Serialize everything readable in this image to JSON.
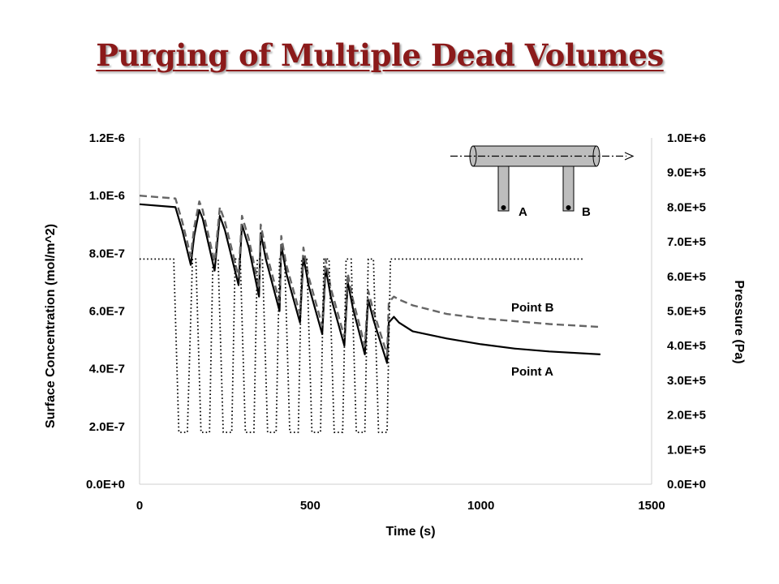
{
  "title": "Purging of Multiple Dead Volumes",
  "colors": {
    "title": "#8b1a1a",
    "solid": "#000000",
    "dashed": "#666666",
    "dotted": "#000000",
    "pipe": "#bdbdbd"
  },
  "chart_data": {
    "type": "line",
    "xlabel": "Time (s)",
    "ylabel_left": "Surface Concentration (mol/m^2)",
    "ylabel_right": "Pressure (Pa)",
    "xlim": [
      0,
      1500
    ],
    "ylim_left": [
      0,
      1.2e-06
    ],
    "ylim_right": [
      0,
      1000000.0
    ],
    "x_ticks": [
      "0",
      "500",
      "1000",
      "1500"
    ],
    "y_ticks_left": [
      "0.0E+0",
      "2.0E-7",
      "4.0E-7",
      "6.0E-7",
      "8.0E-7",
      "1.0E-6",
      "1.2E-6"
    ],
    "y_ticks_right": [
      "0.0E+0",
      "1.0E+5",
      "2.0E+5",
      "3.0E+5",
      "4.0E+5",
      "5.0E+5",
      "6.0E+5",
      "7.0E+5",
      "8.0E+5",
      "9.0E+5",
      "1.0E+6"
    ],
    "grid": false,
    "series": [
      {
        "name": "Point A",
        "axis": "left",
        "style": "solid",
        "x": [
          0,
          105,
          125,
          150,
          160,
          175,
          185,
          220,
          235,
          250,
          290,
          300,
          320,
          350,
          355,
          370,
          410,
          415,
          430,
          470,
          480,
          495,
          535,
          545,
          560,
          600,
          610,
          625,
          660,
          670,
          685,
          725,
          730,
          745,
          760,
          800,
          900,
          1000,
          1100,
          1200,
          1350
        ],
        "y": [
          9.7e-07,
          9.6e-07,
          8.8e-07,
          7.6e-07,
          8.6e-07,
          9.5e-07,
          9.2e-07,
          7.4e-07,
          9.3e-07,
          8.8e-07,
          6.9e-07,
          9e-07,
          8.2e-07,
          6.5e-07,
          8.7e-07,
          7.8e-07,
          6e-07,
          8.3e-07,
          7.3e-07,
          5.6e-07,
          7.9e-07,
          6.9e-07,
          5.2e-07,
          7.5e-07,
          6.5e-07,
          4.8e-07,
          7e-07,
          6.1e-07,
          4.5e-07,
          6.4e-07,
          5.7e-07,
          4.2e-07,
          5.6e-07,
          5.8e-07,
          5.6e-07,
          5.3e-07,
          5.05e-07,
          4.85e-07,
          4.7e-07,
          4.6e-07,
          4.5e-07
        ]
      },
      {
        "name": "Point B",
        "axis": "left",
        "style": "dashed",
        "x": [
          0,
          105,
          125,
          150,
          160,
          175,
          185,
          220,
          235,
          250,
          290,
          300,
          320,
          350,
          355,
          370,
          410,
          415,
          430,
          470,
          480,
          495,
          535,
          545,
          560,
          600,
          610,
          625,
          660,
          670,
          685,
          725,
          730,
          745,
          760,
          800,
          900,
          1000,
          1100,
          1200,
          1350
        ],
        "y": [
          1e-06,
          9.9e-07,
          9.1e-07,
          7.9e-07,
          8.9e-07,
          9.8e-07,
          9.5e-07,
          7.7e-07,
          9.6e-07,
          9.1e-07,
          7.2e-07,
          9.3e-07,
          8.5e-07,
          6.8e-07,
          9e-07,
          8.1e-07,
          6.3e-07,
          8.6e-07,
          7.6e-07,
          5.9e-07,
          8.2e-07,
          7.2e-07,
          5.5e-07,
          7.8e-07,
          6.8e-07,
          5.1e-07,
          7.3e-07,
          6.4e-07,
          4.8e-07,
          6.7e-07,
          6e-07,
          4.5e-07,
          6.3e-07,
          6.5e-07,
          6.4e-07,
          6.2e-07,
          5.9e-07,
          5.75e-07,
          5.65e-07,
          5.55e-07,
          5.45e-07
        ]
      },
      {
        "name": "",
        "axis": "right",
        "style": "dotted",
        "x": [
          0,
          100,
          115,
          140,
          155,
          165,
          180,
          205,
          215,
          230,
          245,
          270,
          280,
          295,
          310,
          335,
          345,
          360,
          375,
          400,
          410,
          425,
          440,
          465,
          475,
          490,
          505,
          530,
          540,
          555,
          570,
          595,
          605,
          620,
          635,
          660,
          670,
          685,
          700,
          725,
          735,
          1300
        ],
        "y": [
          650000.0,
          650000.0,
          150000.0,
          150000.0,
          650000.0,
          650000.0,
          150000.0,
          150000.0,
          650000.0,
          650000.0,
          150000.0,
          150000.0,
          650000.0,
          650000.0,
          150000.0,
          150000.0,
          650000.0,
          650000.0,
          150000.0,
          150000.0,
          650000.0,
          650000.0,
          150000.0,
          150000.0,
          650000.0,
          650000.0,
          150000.0,
          150000.0,
          650000.0,
          650000.0,
          150000.0,
          150000.0,
          650000.0,
          650000.0,
          150000.0,
          150000.0,
          650000.0,
          650000.0,
          150000.0,
          150000.0,
          650000.0,
          650000.0
        ]
      }
    ],
    "annotations": [
      "Point B",
      "Point A"
    ],
    "inset": {
      "labels": [
        "A",
        "B"
      ]
    }
  }
}
